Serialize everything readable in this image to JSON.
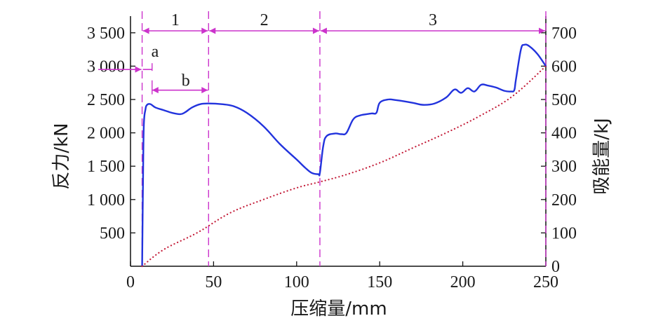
{
  "chart_data": {
    "type": "line",
    "x_axis": {
      "label": "压缩量/mm",
      "range": [
        0,
        250
      ],
      "ticks": [
        0,
        50,
        100,
        150,
        200,
        250
      ],
      "tick_labels": [
        "0",
        "50",
        "100",
        "150",
        "200",
        "250"
      ]
    },
    "y_axis_left": {
      "label": "反力/kN",
      "range": [
        0,
        3750
      ],
      "ticks": [
        500,
        1000,
        1500,
        2000,
        2500,
        3000,
        3500
      ],
      "tick_labels": [
        "500",
        "1 000",
        "1 500",
        "2 000",
        "2 500",
        "3 000",
        "3 500"
      ]
    },
    "y_axis_right": {
      "label": "吸能量/kJ",
      "range": [
        0,
        750
      ],
      "ticks": [
        0,
        100,
        200,
        300,
        400,
        500,
        600,
        700
      ],
      "tick_labels": [
        "0",
        "100",
        "200",
        "300",
        "400",
        "500",
        "600",
        "700"
      ]
    },
    "series": [
      {
        "axis": "left",
        "color": "#2233dd",
        "style": "solid",
        "points": [
          [
            7,
            0
          ],
          [
            7.5,
            1200
          ],
          [
            8,
            2100
          ],
          [
            9,
            2350
          ],
          [
            10,
            2420
          ],
          [
            12,
            2430
          ],
          [
            15,
            2380
          ],
          [
            20,
            2340
          ],
          [
            25,
            2300
          ],
          [
            30,
            2280
          ],
          [
            33,
            2310
          ],
          [
            37,
            2380
          ],
          [
            42,
            2430
          ],
          [
            47,
            2440
          ],
          [
            55,
            2430
          ],
          [
            62,
            2400
          ],
          [
            70,
            2300
          ],
          [
            80,
            2100
          ],
          [
            90,
            1830
          ],
          [
            100,
            1600
          ],
          [
            105,
            1480
          ],
          [
            109,
            1400
          ],
          [
            113,
            1380
          ],
          [
            114,
            1400
          ],
          [
            116,
            1800
          ],
          [
            118,
            1950
          ],
          [
            123,
            1990
          ],
          [
            127,
            1980
          ],
          [
            130,
            2000
          ],
          [
            134,
            2200
          ],
          [
            138,
            2260
          ],
          [
            145,
            2290
          ],
          [
            148,
            2300
          ],
          [
            150,
            2450
          ],
          [
            155,
            2500
          ],
          [
            160,
            2490
          ],
          [
            170,
            2450
          ],
          [
            176,
            2420
          ],
          [
            183,
            2440
          ],
          [
            190,
            2530
          ],
          [
            195,
            2650
          ],
          [
            199,
            2600
          ],
          [
            203,
            2670
          ],
          [
            207,
            2620
          ],
          [
            211,
            2720
          ],
          [
            215,
            2710
          ],
          [
            220,
            2680
          ],
          [
            225,
            2630
          ],
          [
            229,
            2620
          ],
          [
            231,
            2640
          ],
          [
            232,
            2800
          ],
          [
            235,
            3250
          ],
          [
            237,
            3320
          ],
          [
            240,
            3300
          ],
          [
            245,
            3180
          ],
          [
            250,
            3000
          ]
        ]
      },
      {
        "axis": "right",
        "color": "#c41e3a",
        "style": "dotted",
        "points": [
          [
            7,
            0
          ],
          [
            20,
            50
          ],
          [
            40,
            100
          ],
          [
            60,
            160
          ],
          [
            80,
            200
          ],
          [
            100,
            235
          ],
          [
            114,
            253
          ],
          [
            130,
            275
          ],
          [
            150,
            310
          ],
          [
            170,
            355
          ],
          [
            190,
            400
          ],
          [
            210,
            450
          ],
          [
            230,
            510
          ],
          [
            250,
            600
          ]
        ]
      }
    ],
    "phase_boundaries": [
      7,
      47,
      114,
      250
    ],
    "phases": [
      {
        "label": "1",
        "from": 7,
        "to": 47
      },
      {
        "label": "2",
        "from": 47,
        "to": 114
      },
      {
        "label": "3",
        "from": 114,
        "to": 250
      }
    ],
    "sub_phases": [
      {
        "label": "a",
        "from": 7,
        "to": 13,
        "level": 2950
      },
      {
        "label": "b",
        "from": 13,
        "to": 47,
        "level": 2640
      }
    ],
    "annotation_color": "#cc33cc"
  }
}
